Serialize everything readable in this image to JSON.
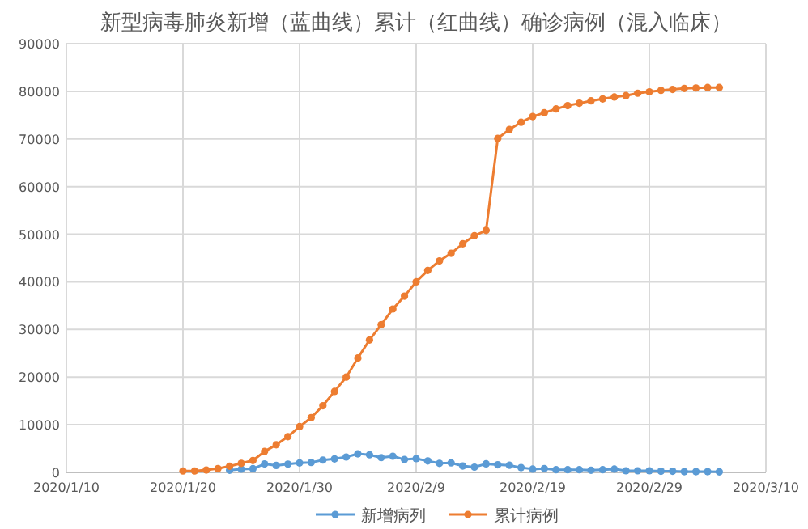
{
  "chart_data": {
    "type": "line",
    "title": "新型病毒肺炎新增（蓝曲线）累计（红曲线）确诊病例（混入临床）",
    "x": [
      "2020-01-20",
      "2020-01-21",
      "2020-01-22",
      "2020-01-23",
      "2020-01-24",
      "2020-01-25",
      "2020-01-26",
      "2020-01-27",
      "2020-01-28",
      "2020-01-29",
      "2020-01-30",
      "2020-01-31",
      "2020-02-01",
      "2020-02-02",
      "2020-02-03",
      "2020-02-04",
      "2020-02-05",
      "2020-02-06",
      "2020-02-07",
      "2020-02-08",
      "2020-02-09",
      "2020-02-10",
      "2020-02-11",
      "2020-02-12",
      "2020-02-13",
      "2020-02-14",
      "2020-02-15",
      "2020-02-16",
      "2020-02-17",
      "2020-02-18",
      "2020-02-19",
      "2020-02-20",
      "2020-02-21",
      "2020-02-22",
      "2020-02-23",
      "2020-02-24",
      "2020-02-25",
      "2020-02-26",
      "2020-02-27",
      "2020-02-28",
      "2020-02-29",
      "2020-03-01",
      "2020-03-02",
      "2020-03-03",
      "2020-03-04",
      "2020-03-05",
      "2020-03-06"
    ],
    "series": [
      {
        "name": "新增病列",
        "color": "#5b9bd5",
        "values": [
          null,
          null,
          null,
          null,
          450,
          690,
          770,
          1770,
          1460,
          1740,
          1980,
          2100,
          2590,
          2830,
          3230,
          3900,
          3700,
          3100,
          3400,
          2700,
          2900,
          2400,
          1900,
          2000,
          1350,
          1100,
          1800,
          1600,
          1500,
          1000,
          700,
          800,
          560,
          560,
          560,
          450,
          560,
          700,
          340,
          340,
          340,
          250,
          250,
          150,
          150,
          150,
          120
        ]
      },
      {
        "name": "累计病例",
        "color": "#ed7d31",
        "values": [
          300,
          300,
          500,
          800,
          1300,
          1900,
          2500,
          4400,
          5800,
          7500,
          9600,
          11500,
          14000,
          17000,
          20000,
          24000,
          27800,
          31000,
          34300,
          37000,
          40000,
          42400,
          44400,
          46000,
          48000,
          49700,
          50800,
          70100,
          72000,
          73500,
          74700,
          75500,
          76300,
          77000,
          77500,
          78000,
          78400,
          78800,
          79100,
          79600,
          79900,
          80200,
          80400,
          80600,
          80700,
          80800,
          80800
        ]
      }
    ],
    "xlim": [
      "2020-01-10",
      "2020-03-10"
    ],
    "xticks": [
      {
        "value": "2020-01-10",
        "label": "2020/1/10"
      },
      {
        "value": "2020-01-20",
        "label": "2020/1/20"
      },
      {
        "value": "2020-01-30",
        "label": "2020/1/30"
      },
      {
        "value": "2020-02-09",
        "label": "2020/2/9"
      },
      {
        "value": "2020-02-19",
        "label": "2020/2/19"
      },
      {
        "value": "2020-02-29",
        "label": "2020/2/29"
      },
      {
        "value": "2020-03-10",
        "label": "2020/3/10"
      }
    ],
    "ylim": [
      0,
      90000
    ],
    "yticks": [
      0,
      10000,
      20000,
      30000,
      40000,
      50000,
      60000,
      70000,
      80000,
      90000
    ],
    "grid": true,
    "legend": "bottom",
    "marker": "circle",
    "line_style": "solid"
  }
}
